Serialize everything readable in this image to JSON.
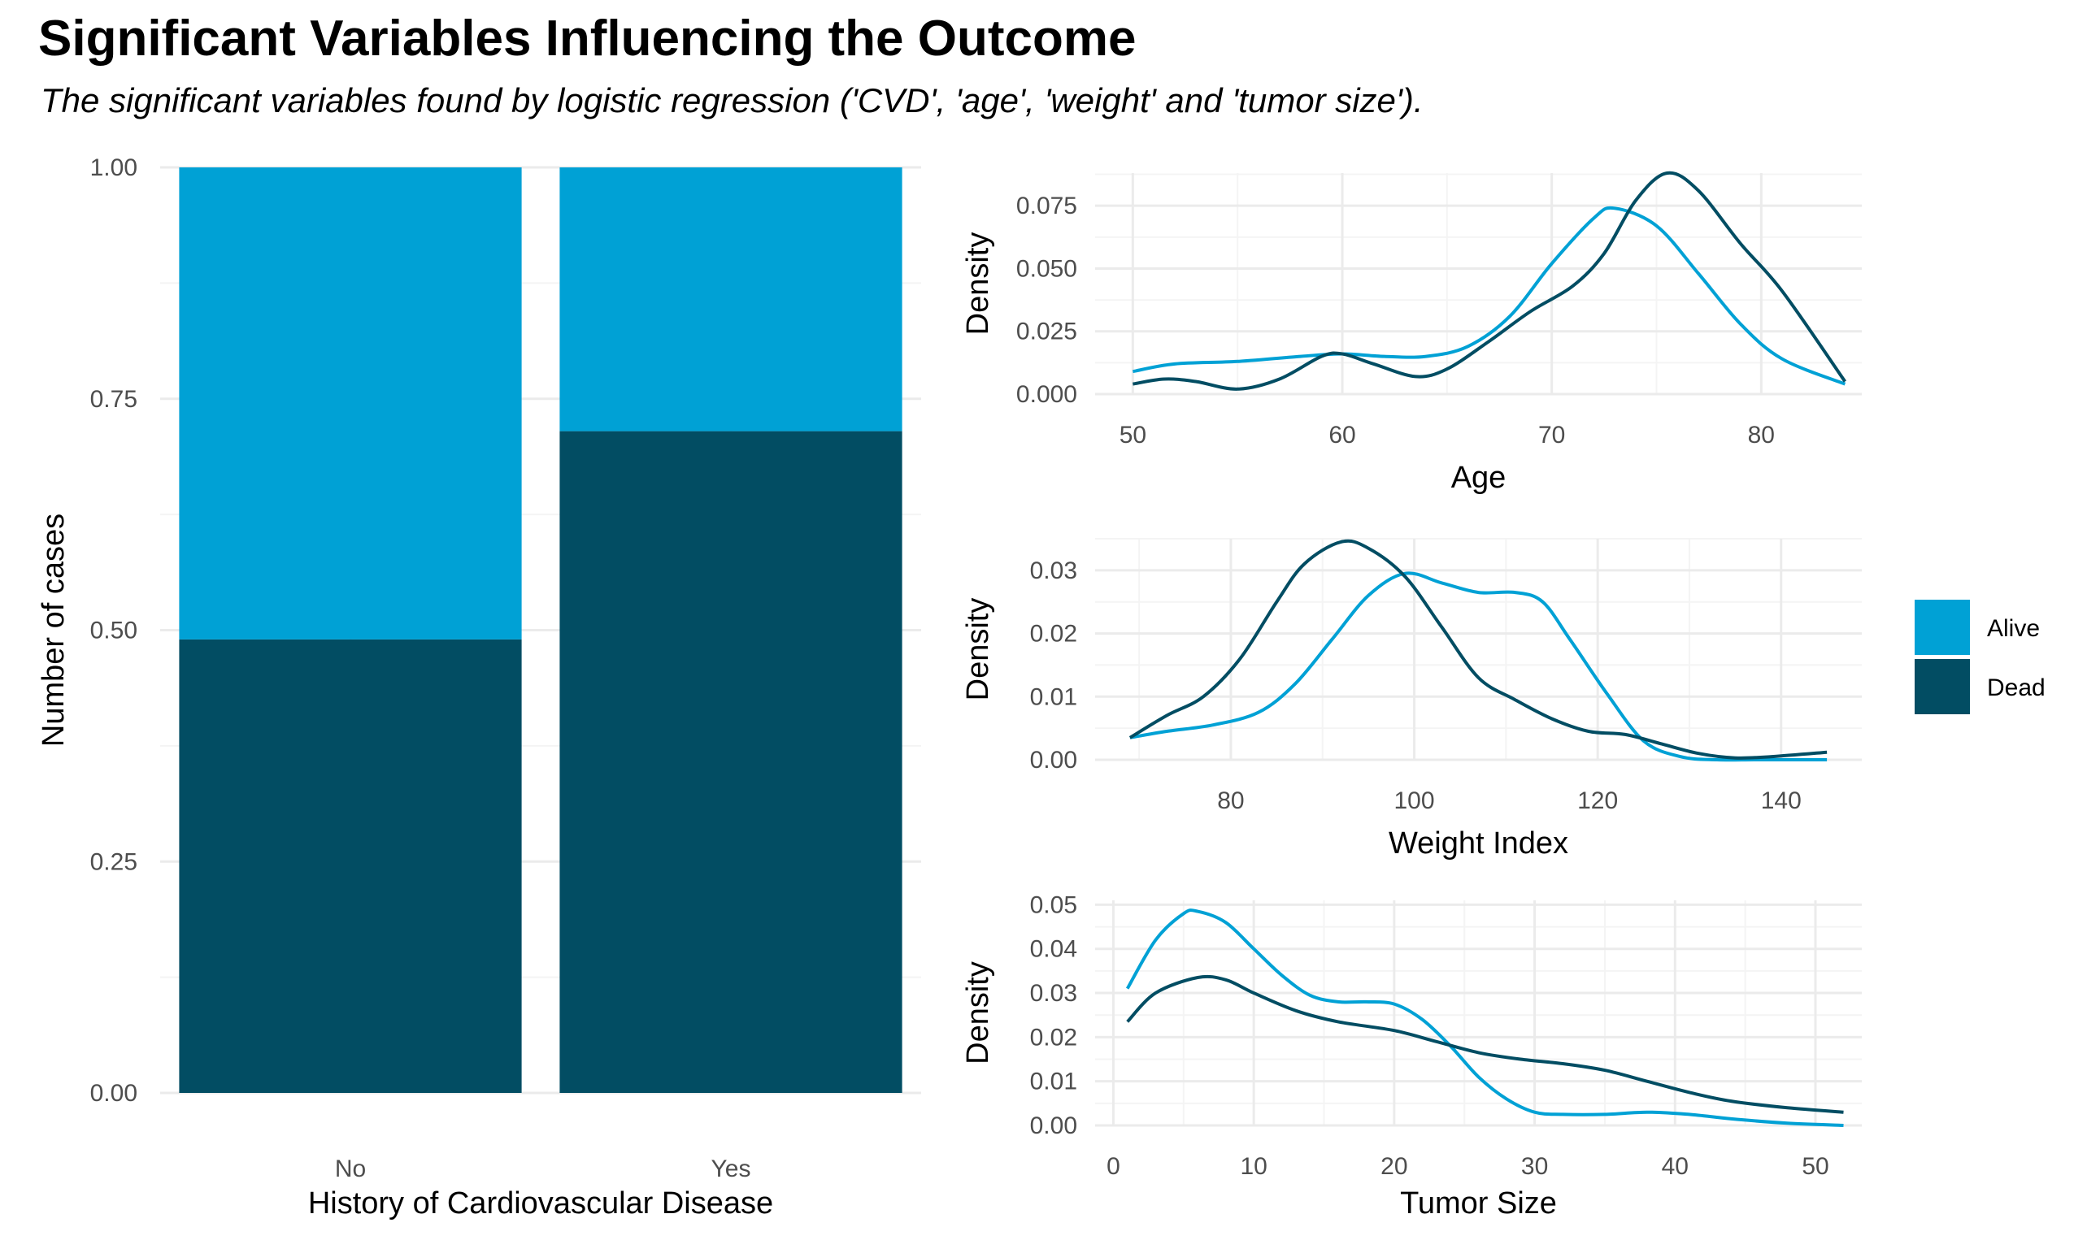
{
  "title": "Significant Variables Influencing the Outcome",
  "subtitle": "The significant variables found by logistic regression ('CVD', 'age', 'weight' and 'tumor size').",
  "colors": {
    "Alive": "#00A1D5",
    "Dead": "#024D63",
    "grid_major": "#EBEBEB",
    "grid_minor": "#F4F4F4"
  },
  "legend": {
    "position": "right",
    "items": [
      "Alive",
      "Dead"
    ]
  },
  "chart_data": [
    {
      "type": "bar",
      "stacked": true,
      "xlabel": "History of Cardiovascular Disease",
      "ylabel": "Number of cases",
      "categories": [
        "No",
        "Yes"
      ],
      "ylim": [
        0,
        1
      ],
      "yticks": [
        0,
        0.25,
        0.5,
        0.75,
        1
      ],
      "ytick_labels": [
        "0.00",
        "0.25",
        "0.50",
        "0.75",
        "1.00"
      ],
      "series": [
        {
          "name": "Dead",
          "values": [
            0.49,
            0.715
          ]
        },
        {
          "name": "Alive",
          "values": [
            0.51,
            0.285
          ]
        }
      ],
      "grid": true
    },
    {
      "type": "line",
      "xlabel": "Age",
      "ylabel": "Density",
      "xlim": [
        48.2,
        84.8
      ],
      "ylim": [
        0,
        0.088
      ],
      "xticks": [
        50,
        60,
        70,
        80
      ],
      "xtick_labels": [
        "50",
        "60",
        "70",
        "80"
      ],
      "yticks": [
        0,
        0.025,
        0.05,
        0.075
      ],
      "ytick_labels": [
        "0.000",
        "0.025",
        "0.050",
        "0.075"
      ],
      "series": [
        {
          "name": "Alive",
          "x": [
            50,
            52,
            55,
            58,
            60,
            62,
            64,
            66,
            68,
            70,
            72,
            73,
            75,
            77,
            79,
            81,
            84
          ],
          "y": [
            0.009,
            0.012,
            0.013,
            0.015,
            0.016,
            0.015,
            0.015,
            0.019,
            0.031,
            0.052,
            0.07,
            0.074,
            0.067,
            0.048,
            0.028,
            0.014,
            0.004
          ]
        },
        {
          "name": "Dead",
          "x": [
            50,
            51.5,
            53,
            55,
            57,
            59,
            60,
            61.5,
            63.5,
            65,
            67,
            69,
            71,
            72.5,
            74,
            75.5,
            77,
            79,
            81,
            84
          ],
          "y": [
            0.004,
            0.006,
            0.005,
            0.002,
            0.006,
            0.015,
            0.016,
            0.012,
            0.007,
            0.01,
            0.021,
            0.033,
            0.043,
            0.056,
            0.077,
            0.088,
            0.081,
            0.06,
            0.041,
            0.005
          ]
        }
      ],
      "grid": true
    },
    {
      "type": "line",
      "xlabel": "Weight Index",
      "ylabel": "Density",
      "xlim": [
        65.2,
        148.8
      ],
      "ylim": [
        0,
        0.035
      ],
      "xticks": [
        80,
        100,
        120,
        140
      ],
      "xtick_labels": [
        "80",
        "100",
        "120",
        "140"
      ],
      "yticks": [
        0,
        0.01,
        0.02,
        0.03
      ],
      "ytick_labels": [
        "0.00",
        "0.01",
        "0.02",
        "0.03"
      ],
      "series": [
        {
          "name": "Alive",
          "x": [
            69,
            73,
            78,
            83,
            87,
            91,
            95,
            99,
            103,
            107,
            111,
            114,
            117,
            121,
            125,
            129,
            133,
            137,
            141,
            145
          ],
          "y": [
            0.0035,
            0.0045,
            0.0055,
            0.0075,
            0.012,
            0.019,
            0.026,
            0.0295,
            0.028,
            0.0265,
            0.0265,
            0.025,
            0.019,
            0.0105,
            0.003,
            0.0005,
            0.0,
            0.0,
            0.0,
            0.0
          ]
        },
        {
          "name": "Dead",
          "x": [
            69,
            73,
            77,
            81,
            85,
            88,
            92,
            95,
            99,
            103,
            107,
            111,
            115,
            119,
            123,
            127,
            131,
            135,
            139,
            145
          ],
          "y": [
            0.0035,
            0.007,
            0.01,
            0.016,
            0.025,
            0.031,
            0.0345,
            0.0335,
            0.029,
            0.021,
            0.013,
            0.0095,
            0.0065,
            0.0045,
            0.004,
            0.0025,
            0.001,
            0.0003,
            0.0005,
            0.0012
          ]
        }
      ],
      "grid": true
    },
    {
      "type": "line",
      "xlabel": "Tumor Size",
      "ylabel": "Density",
      "xlim": [
        -1.3,
        53.3
      ],
      "ylim": [
        0,
        0.051
      ],
      "xticks": [
        0,
        10,
        20,
        30,
        40,
        50
      ],
      "xtick_labels": [
        "0",
        "10",
        "20",
        "30",
        "40",
        "50"
      ],
      "yticks": [
        0,
        0.01,
        0.02,
        0.03,
        0.04,
        0.05
      ],
      "ytick_labels": [
        "0.00",
        "0.01",
        "0.02",
        "0.03",
        "0.04",
        "0.05"
      ],
      "series": [
        {
          "name": "Alive",
          "x": [
            1,
            3,
            5,
            6,
            8,
            10,
            12,
            14,
            16,
            18,
            20,
            22,
            24,
            26,
            28,
            30,
            32,
            35,
            38,
            41,
            44,
            48,
            52
          ],
          "y": [
            0.031,
            0.042,
            0.048,
            0.0485,
            0.046,
            0.04,
            0.034,
            0.0295,
            0.028,
            0.028,
            0.0275,
            0.024,
            0.018,
            0.011,
            0.006,
            0.003,
            0.0025,
            0.0025,
            0.003,
            0.0025,
            0.0015,
            0.0005,
            0.0
          ]
        },
        {
          "name": "Dead",
          "x": [
            1,
            3,
            6,
            8,
            10,
            13,
            16,
            20,
            23,
            26,
            29,
            32,
            35,
            38,
            41,
            44,
            48,
            52
          ],
          "y": [
            0.0235,
            0.03,
            0.0335,
            0.033,
            0.03,
            0.026,
            0.0235,
            0.0215,
            0.019,
            0.0165,
            0.015,
            0.014,
            0.0125,
            0.01,
            0.0075,
            0.0055,
            0.004,
            0.003
          ]
        }
      ],
      "grid": true
    }
  ]
}
